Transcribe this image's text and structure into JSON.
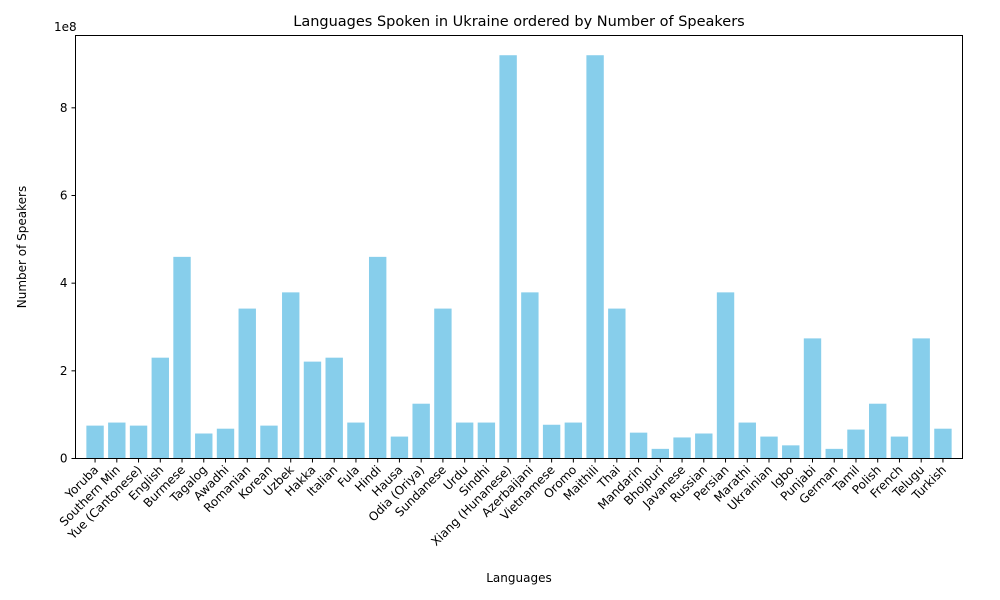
{
  "chart_data": {
    "type": "bar",
    "title": "Languages Spoken in Ukraine ordered by Number of Speakers",
    "xlabel": "Languages",
    "ylabel": "Number of Speakers",
    "y_offset_label": "1e8",
    "y_tick_labels": [
      "0",
      "2",
      "4",
      "6",
      "8"
    ],
    "y_ticks": [
      0,
      200000000,
      400000000,
      600000000,
      800000000
    ],
    "ylim": [
      0,
      965000000
    ],
    "bar_color": "#87ceeb",
    "grid": false,
    "categories": [
      "Yoruba",
      "Southern Min",
      "Yue (Cantonese)",
      "English",
      "Burmese",
      "Tagalog",
      "Awadhi",
      "Romanian",
      "Korean",
      "Uzbek",
      "Hakka",
      "Italian",
      "Fula",
      "Hindi",
      "Hausa",
      "Odia (Oriya)",
      "Sundanese",
      "Urdu",
      "Sindhi",
      "Xiang (Hunanese)",
      "Azerbaijani",
      "Vietnamese",
      "Oromo",
      "Maithili",
      "Thai",
      "Mandarin",
      "Bhojpuri",
      "Javanese",
      "Russian",
      "Persian",
      "Marathi",
      "Ukrainian",
      "Igbo",
      "Punjabi",
      "German",
      "Tamil",
      "Polish",
      "French",
      "Telugu",
      "Turkish"
    ],
    "values": [
      75000000,
      82000000,
      75000000,
      230000000,
      460000000,
      57000000,
      68000000,
      342000000,
      75000000,
      379000000,
      221000000,
      230000000,
      82000000,
      460000000,
      50000000,
      125000000,
      342000000,
      82000000,
      82000000,
      920000000,
      379000000,
      77000000,
      82000000,
      920000000,
      342000000,
      59000000,
      22000000,
      48000000,
      57000000,
      379000000,
      82000000,
      50000000,
      30000000,
      274000000,
      22000000,
      66000000,
      125000000,
      50000000,
      274000000,
      68000000
    ]
  }
}
